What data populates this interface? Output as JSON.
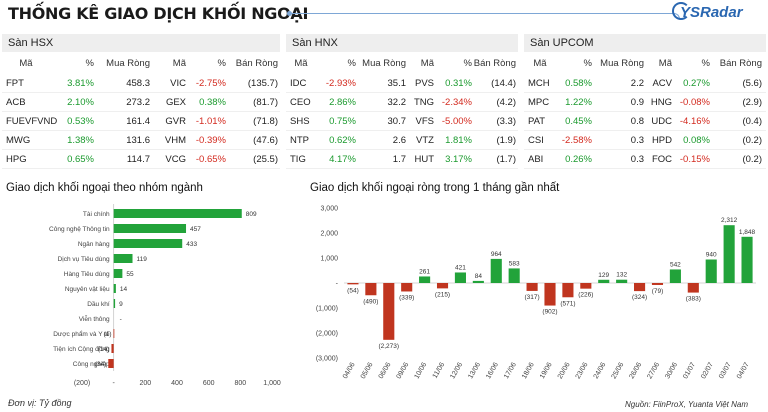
{
  "header": {
    "title": "THỐNG KÊ GIAO DỊCH KHỐI NGOẠI",
    "brand": "YSRadar"
  },
  "colors": {
    "positive": "#1b9a2e",
    "negative": "#d32a1f",
    "bar_green": "#22a33a",
    "bar_red": "#c0351f"
  },
  "columns": {
    "code": "Mã",
    "pct": "%",
    "buy": "Mua Ròng",
    "sell": "Bán Ròng"
  },
  "hsx": {
    "title": "Sàn HSX",
    "rows": [
      {
        "b_code": "FPT",
        "b_pct": "3.81%",
        "b_val": "458.3",
        "s_code": "VIC",
        "s_pct": "-2.75%",
        "s_val": "(135.7)"
      },
      {
        "b_code": "ACB",
        "b_pct": "2.10%",
        "b_val": "273.2",
        "s_code": "GEX",
        "s_pct": "0.38%",
        "s_val": "(81.7)"
      },
      {
        "b_code": "FUEVFVND",
        "b_pct": "0.53%",
        "b_val": "161.4",
        "s_code": "GVR",
        "s_pct": "-1.01%",
        "s_val": "(71.8)"
      },
      {
        "b_code": "MWG",
        "b_pct": "1.38%",
        "b_val": "131.6",
        "s_code": "VHM",
        "s_pct": "-0.39%",
        "s_val": "(47.6)"
      },
      {
        "b_code": "HPG",
        "b_pct": "0.65%",
        "b_val": "114.7",
        "s_code": "VCG",
        "s_pct": "-0.65%",
        "s_val": "(25.5)"
      }
    ]
  },
  "hnx": {
    "title": "Sàn HNX",
    "rows": [
      {
        "b_code": "IDC",
        "b_pct": "-2.93%",
        "b_val": "35.1",
        "s_code": "PVS",
        "s_pct": "0.31%",
        "s_val": "(14.4)"
      },
      {
        "b_code": "CEO",
        "b_pct": "2.86%",
        "b_val": "32.2",
        "s_code": "TNG",
        "s_pct": "-2.34%",
        "s_val": "(4.2)"
      },
      {
        "b_code": "SHS",
        "b_pct": "0.75%",
        "b_val": "30.7",
        "s_code": "VFS",
        "s_pct": "-5.00%",
        "s_val": "(3.3)"
      },
      {
        "b_code": "NTP",
        "b_pct": "0.62%",
        "b_val": "2.6",
        "s_code": "VTZ",
        "s_pct": "1.81%",
        "s_val": "(1.9)"
      },
      {
        "b_code": "TIG",
        "b_pct": "4.17%",
        "b_val": "1.7",
        "s_code": "HUT",
        "s_pct": "3.17%",
        "s_val": "(1.7)"
      }
    ]
  },
  "upcom": {
    "title": "Sàn UPCOM",
    "rows": [
      {
        "b_code": "MCH",
        "b_pct": "0.58%",
        "b_val": "2.2",
        "s_code": "ACV",
        "s_pct": "0.27%",
        "s_val": "(5.6)"
      },
      {
        "b_code": "MPC",
        "b_pct": "1.22%",
        "b_val": "0.9",
        "s_code": "HNG",
        "s_pct": "-0.08%",
        "s_val": "(2.9)"
      },
      {
        "b_code": "PAT",
        "b_pct": "0.45%",
        "b_val": "0.8",
        "s_code": "UDC",
        "s_pct": "-4.16%",
        "s_val": "(0.4)"
      },
      {
        "b_code": "CSI",
        "b_pct": "-2.58%",
        "b_val": "0.3",
        "s_code": "HPD",
        "s_pct": "0.08%",
        "s_val": "(0.2)"
      },
      {
        "b_code": "ABI",
        "b_pct": "0.26%",
        "b_val": "0.3",
        "s_code": "FOC",
        "s_pct": "-0.15%",
        "s_val": "(0.2)"
      }
    ]
  },
  "sections": {
    "sector_title": "Giao dịch khối ngoại theo nhóm ngành",
    "monthly_title": "Giao dịch khối ngoại ròng trong 1 tháng gần nhất"
  },
  "footnote": "Đơn vị: Tỷ đồng",
  "source": "Nguồn: FiinProX, Yuanta Việt Nam",
  "chart_data": [
    {
      "type": "bar",
      "orientation": "horizontal",
      "title": "Giao dịch khối ngoại theo nhóm ngành",
      "categories": [
        "Tài chính",
        "Công nghệ Thông tin",
        "Ngân hàng",
        "Dịch vụ Tiêu dùng",
        "Hàng Tiêu dùng",
        "Nguyên vật liệu",
        "Dầu khí",
        "Viễn thông",
        "Dược phẩm và Y tế",
        "Tiện ích Cộng đồng",
        "Công nghiệp"
      ],
      "values": [
        809,
        457,
        433,
        119,
        55,
        14,
        9,
        null,
        -1,
        -14,
        -34
      ],
      "labels": [
        "809",
        "457",
        "433",
        "119",
        "55",
        "14",
        "9",
        "-",
        "(1)",
        "(14)",
        "(34)"
      ],
      "xlim": [
        -200,
        1000
      ],
      "xticks": [
        "(200)",
        "-",
        "200",
        "400",
        "600",
        "800",
        "1,000"
      ]
    },
    {
      "type": "bar",
      "title": "Giao dịch khối ngoại ròng trong 1 tháng gần nhất",
      "categories": [
        "04/06",
        "05/06",
        "06/06",
        "09/06",
        "10/06",
        "11/06",
        "12/06",
        "13/06",
        "16/06",
        "17/06",
        "18/06",
        "19/06",
        "20/06",
        "23/06",
        "24/06",
        "25/06",
        "26/06",
        "27/06",
        "30/06",
        "01/07",
        "02/07",
        "03/07",
        "04/07"
      ],
      "values": [
        -54,
        -490,
        -2273,
        -339,
        261,
        -215,
        421,
        84,
        964,
        583,
        -317,
        -902,
        -571,
        -226,
        129,
        132,
        -324,
        -79,
        542,
        -383,
        940,
        2312,
        1848
      ],
      "labels": [
        "(54)",
        "(490)",
        "(2,273)",
        "(339)",
        "261",
        "(215)",
        "421",
        "84",
        "964",
        "583",
        "(317)",
        "(902)",
        "(571)",
        "(226)",
        "129",
        "132",
        "(324)",
        "(79)",
        "542",
        "(383)",
        "940",
        "2,312",
        "1,848"
      ],
      "ylim": [
        -3000,
        3000
      ],
      "yticks": [
        "3,000",
        "2,000",
        "1,000",
        "-",
        "(1,000)",
        "(2,000)",
        "(3,000)"
      ]
    }
  ]
}
